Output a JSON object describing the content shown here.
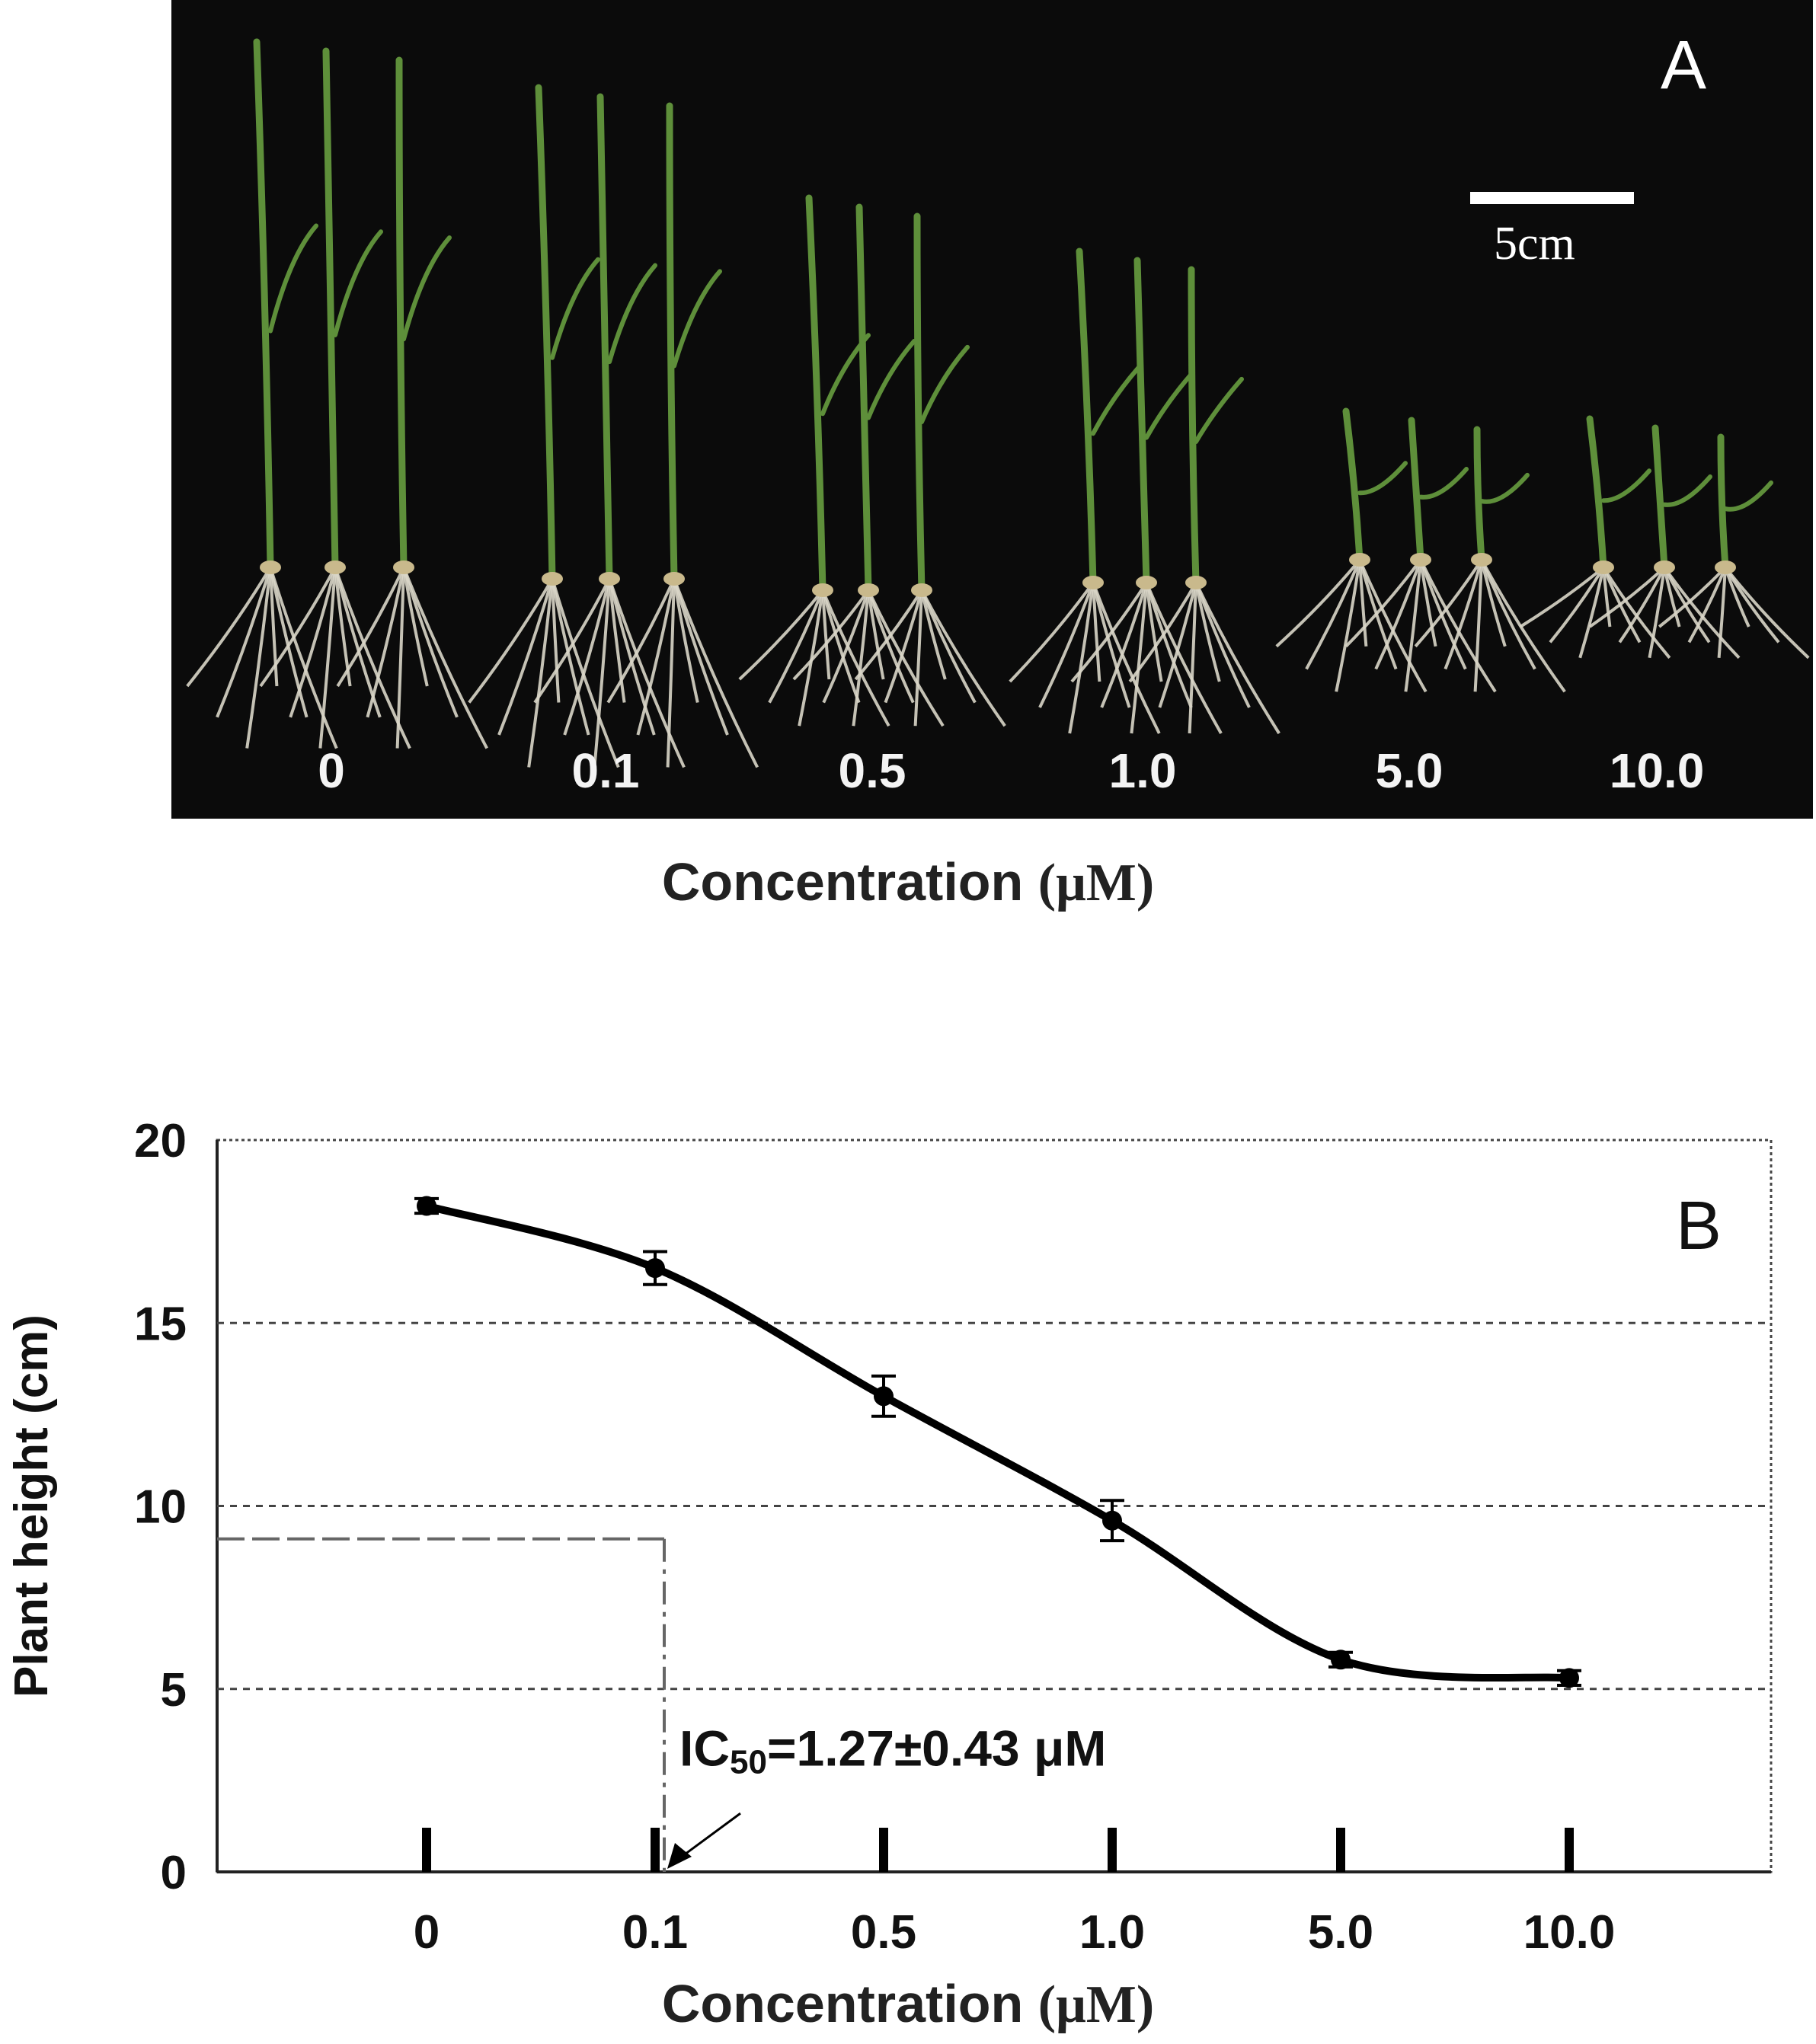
{
  "panel_a": {
    "letter": "A",
    "scale_label": "5cm",
    "concentrations": [
      "0",
      "0.1",
      "0.5",
      "1.0",
      "5.0",
      "10.0"
    ],
    "x_title": "Concentration",
    "x_unit": "(μM)",
    "colors": {
      "background": "#0b0b0b",
      "leaf": "#5e8f3a",
      "root": "#d9d6c8"
    }
  },
  "chart_data": {
    "type": "line",
    "panel_letter": "B",
    "title": "",
    "xlabel": "Concentration (μM)",
    "xlabel_text": "Concentration",
    "xlabel_unit": "(μM)",
    "ylabel": "Plant height (cm)",
    "categories": [
      "0",
      "0.1",
      "0.5",
      "1.0",
      "5.0",
      "10.0"
    ],
    "values": [
      18.2,
      16.5,
      13.0,
      9.6,
      5.8,
      5.3
    ],
    "errors": [
      0.2,
      0.45,
      0.55,
      0.55,
      0.2,
      0.2
    ],
    "ylim": [
      0,
      20
    ],
    "yticks": [
      "0",
      "5",
      "10",
      "15",
      "20"
    ],
    "gridlines": [
      5,
      10,
      15
    ],
    "ic50_height": 9.1,
    "ic50_position": 1.04,
    "annotation": "IC",
    "annotation_sub": "50",
    "annotation_value": "=1.27±0.43 μM",
    "grid": true,
    "colors": {
      "line": "#000000",
      "grid": "#444444",
      "guide": "#666666"
    }
  }
}
